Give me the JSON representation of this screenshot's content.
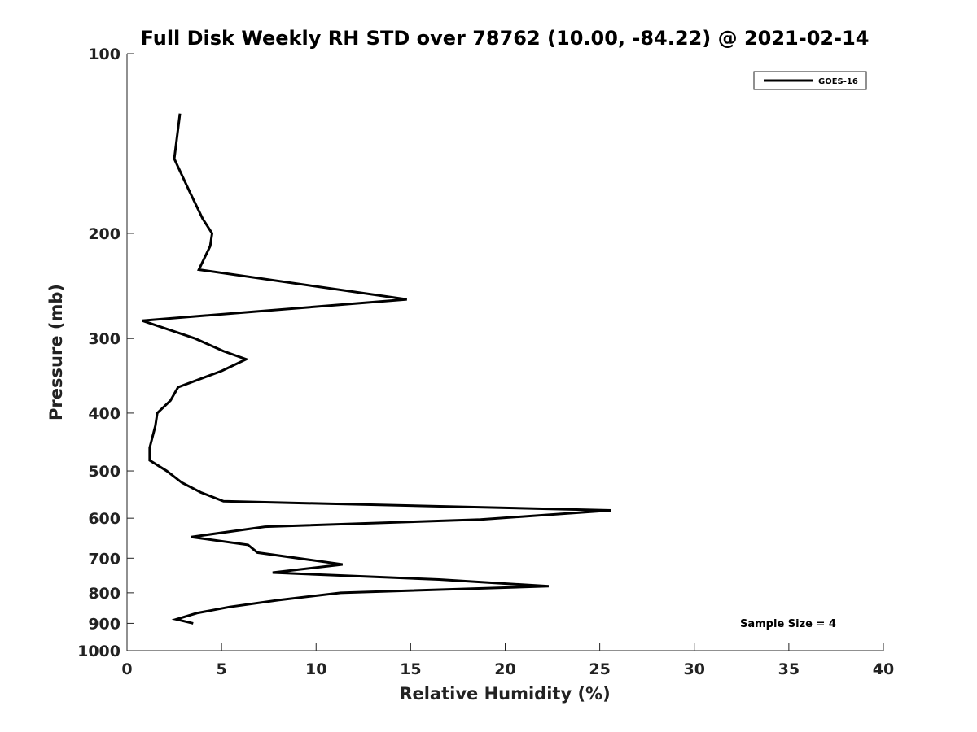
{
  "chart_data": {
    "type": "line",
    "title": "Full Disk Weekly RH STD over 78762 (10.00, -84.22) @ 2021-02-14",
    "xlabel": "Relative Humidity (%)",
    "ylabel": "Pressure (mb)",
    "xlim": [
      0,
      40
    ],
    "ylim": [
      100,
      1000
    ],
    "y_scale": "log",
    "y_inverted": true,
    "x_ticks": [
      0,
      5,
      10,
      15,
      20,
      25,
      30,
      35,
      40
    ],
    "y_ticks": [
      100,
      200,
      300,
      400,
      500,
      600,
      700,
      800,
      900,
      1000
    ],
    "grid": false,
    "legend_position": "top-right",
    "series": [
      {
        "name": "GOES-16",
        "color": "#000000",
        "points": [
          {
            "x": 2.8,
            "y": 126
          },
          {
            "x": 2.5,
            "y": 150
          },
          {
            "x": 3.3,
            "y": 170
          },
          {
            "x": 4.0,
            "y": 189
          },
          {
            "x": 4.5,
            "y": 200
          },
          {
            "x": 4.4,
            "y": 210
          },
          {
            "x": 3.8,
            "y": 230
          },
          {
            "x": 14.8,
            "y": 258
          },
          {
            "x": 0.8,
            "y": 280
          },
          {
            "x": 3.6,
            "y": 300
          },
          {
            "x": 5.1,
            "y": 315
          },
          {
            "x": 6.3,
            "y": 325
          },
          {
            "x": 5.0,
            "y": 340
          },
          {
            "x": 2.7,
            "y": 362
          },
          {
            "x": 2.3,
            "y": 381
          },
          {
            "x": 1.6,
            "y": 400
          },
          {
            "x": 1.5,
            "y": 420
          },
          {
            "x": 1.2,
            "y": 457
          },
          {
            "x": 1.2,
            "y": 480
          },
          {
            "x": 2.1,
            "y": 500
          },
          {
            "x": 2.9,
            "y": 523
          },
          {
            "x": 3.9,
            "y": 543
          },
          {
            "x": 5.1,
            "y": 562
          },
          {
            "x": 25.6,
            "y": 582
          },
          {
            "x": 18.7,
            "y": 603
          },
          {
            "x": 7.3,
            "y": 620
          },
          {
            "x": 3.4,
            "y": 645
          },
          {
            "x": 6.4,
            "y": 665
          },
          {
            "x": 6.9,
            "y": 685
          },
          {
            "x": 11.4,
            "y": 717
          },
          {
            "x": 7.7,
            "y": 740
          },
          {
            "x": 16.5,
            "y": 760
          },
          {
            "x": 22.3,
            "y": 780
          },
          {
            "x": 11.3,
            "y": 800
          },
          {
            "x": 8.0,
            "y": 823
          },
          {
            "x": 5.4,
            "y": 845
          },
          {
            "x": 3.7,
            "y": 865
          },
          {
            "x": 2.6,
            "y": 886
          },
          {
            "x": 3.5,
            "y": 900
          }
        ]
      }
    ],
    "annotations": [
      "Sample Size = 4"
    ]
  }
}
